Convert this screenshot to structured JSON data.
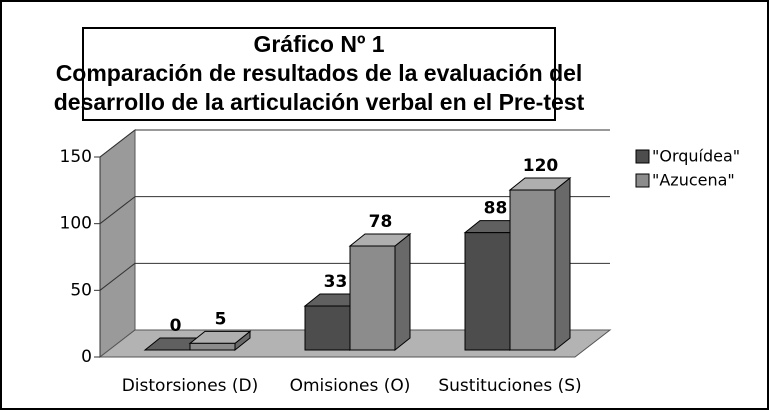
{
  "chart_data": {
    "type": "bar3d",
    "title": [
      "Gráfico Nº 1",
      "Comparación de resultados de la evaluación del",
      "desarrollo de la articulación verbal en el Pre-test"
    ],
    "categories": [
      "Distorsiones (D)",
      "Omisiones (O)",
      "Sustituciones (S)"
    ],
    "series": [
      {
        "name": "\"Orquídea\"",
        "color": "#4d4d4d",
        "values": [
          0,
          33,
          88
        ]
      },
      {
        "name": "\"Azucena\"",
        "color": "#8c8c8c",
        "values": [
          5,
          78,
          120
        ]
      }
    ],
    "ylim": [
      0,
      150
    ],
    "yticks": [
      0,
      50,
      100,
      150
    ],
    "grid": true,
    "legend": "right"
  }
}
